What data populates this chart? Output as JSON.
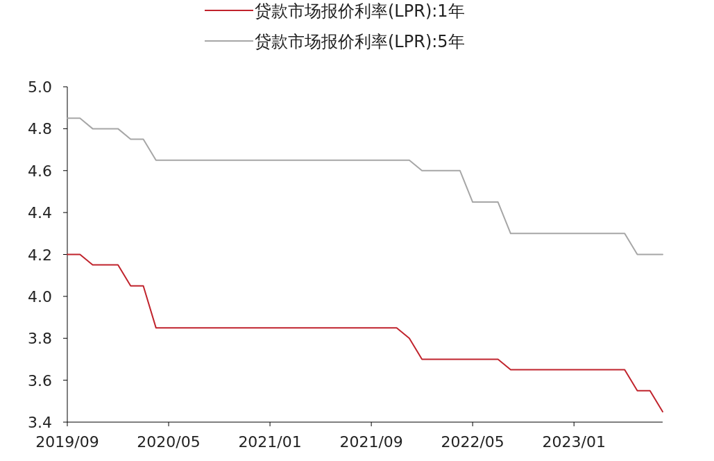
{
  "chart_data": {
    "type": "line",
    "legend": "top",
    "grid": false,
    "marker": "none",
    "line_style": "solid",
    "x": [
      "2019-09",
      "2019-10",
      "2019-11",
      "2019-12",
      "2020-01",
      "2020-02",
      "2020-03",
      "2020-04",
      "2020-05",
      "2020-06",
      "2020-07",
      "2020-08",
      "2020-09",
      "2020-10",
      "2020-11",
      "2020-12",
      "2021-01",
      "2021-02",
      "2021-03",
      "2021-04",
      "2021-05",
      "2021-06",
      "2021-07",
      "2021-08",
      "2021-09",
      "2021-10",
      "2021-11",
      "2021-12",
      "2022-01",
      "2022-02",
      "2022-03",
      "2022-04",
      "2022-05",
      "2022-06",
      "2022-07",
      "2022-08",
      "2022-09",
      "2022-10",
      "2022-11",
      "2022-12",
      "2023-01",
      "2023-02",
      "2023-03",
      "2023-04",
      "2023-05",
      "2023-06",
      "2023-07",
      "2023-08"
    ],
    "series": [
      {
        "name": "贷款市场报价利率(LPR):1年",
        "color": "#c0232c",
        "values": [
          4.2,
          4.2,
          4.15,
          4.15,
          4.15,
          4.05,
          4.05,
          3.85,
          3.85,
          3.85,
          3.85,
          3.85,
          3.85,
          3.85,
          3.85,
          3.85,
          3.85,
          3.85,
          3.85,
          3.85,
          3.85,
          3.85,
          3.85,
          3.85,
          3.85,
          3.85,
          3.85,
          3.8,
          3.7,
          3.7,
          3.7,
          3.7,
          3.7,
          3.7,
          3.7,
          3.65,
          3.65,
          3.65,
          3.65,
          3.65,
          3.65,
          3.65,
          3.65,
          3.65,
          3.65,
          3.55,
          3.55,
          3.45
        ]
      },
      {
        "name": "贷款市场报价利率(LPR):5年",
        "color": "#a6a6a6",
        "values": [
          4.85,
          4.85,
          4.8,
          4.8,
          4.8,
          4.75,
          4.75,
          4.65,
          4.65,
          4.65,
          4.65,
          4.65,
          4.65,
          4.65,
          4.65,
          4.65,
          4.65,
          4.65,
          4.65,
          4.65,
          4.65,
          4.65,
          4.65,
          4.65,
          4.65,
          4.65,
          4.65,
          4.65,
          4.6,
          4.6,
          4.6,
          4.6,
          4.45,
          4.45,
          4.45,
          4.3,
          4.3,
          4.3,
          4.3,
          4.3,
          4.3,
          4.3,
          4.3,
          4.3,
          4.3,
          4.2,
          4.2,
          4.2
        ]
      }
    ],
    "xlim": [
      "2019-09",
      "2023-08"
    ],
    "xticks": [
      {
        "value": "2019-09",
        "label": "2019/09"
      },
      {
        "value": "2020-05",
        "label": "2020/05"
      },
      {
        "value": "2021-01",
        "label": "2021/01"
      },
      {
        "value": "2021-09",
        "label": "2021/09"
      },
      {
        "value": "2022-05",
        "label": "2022/05"
      },
      {
        "value": "2023-01",
        "label": "2023/01"
      }
    ],
    "ylim": [
      3.4,
      5.0
    ],
    "yticks": [
      {
        "value": 3.4,
        "label": "3.4"
      },
      {
        "value": 3.6,
        "label": "3.6"
      },
      {
        "value": 3.8,
        "label": "3.8"
      },
      {
        "value": 4.0,
        "label": "4.0"
      },
      {
        "value": 4.2,
        "label": "4.2"
      },
      {
        "value": 4.4,
        "label": "4.4"
      },
      {
        "value": 4.6,
        "label": "4.6"
      },
      {
        "value": 4.8,
        "label": "4.8"
      },
      {
        "value": 5.0,
        "label": "5.0"
      }
    ]
  }
}
